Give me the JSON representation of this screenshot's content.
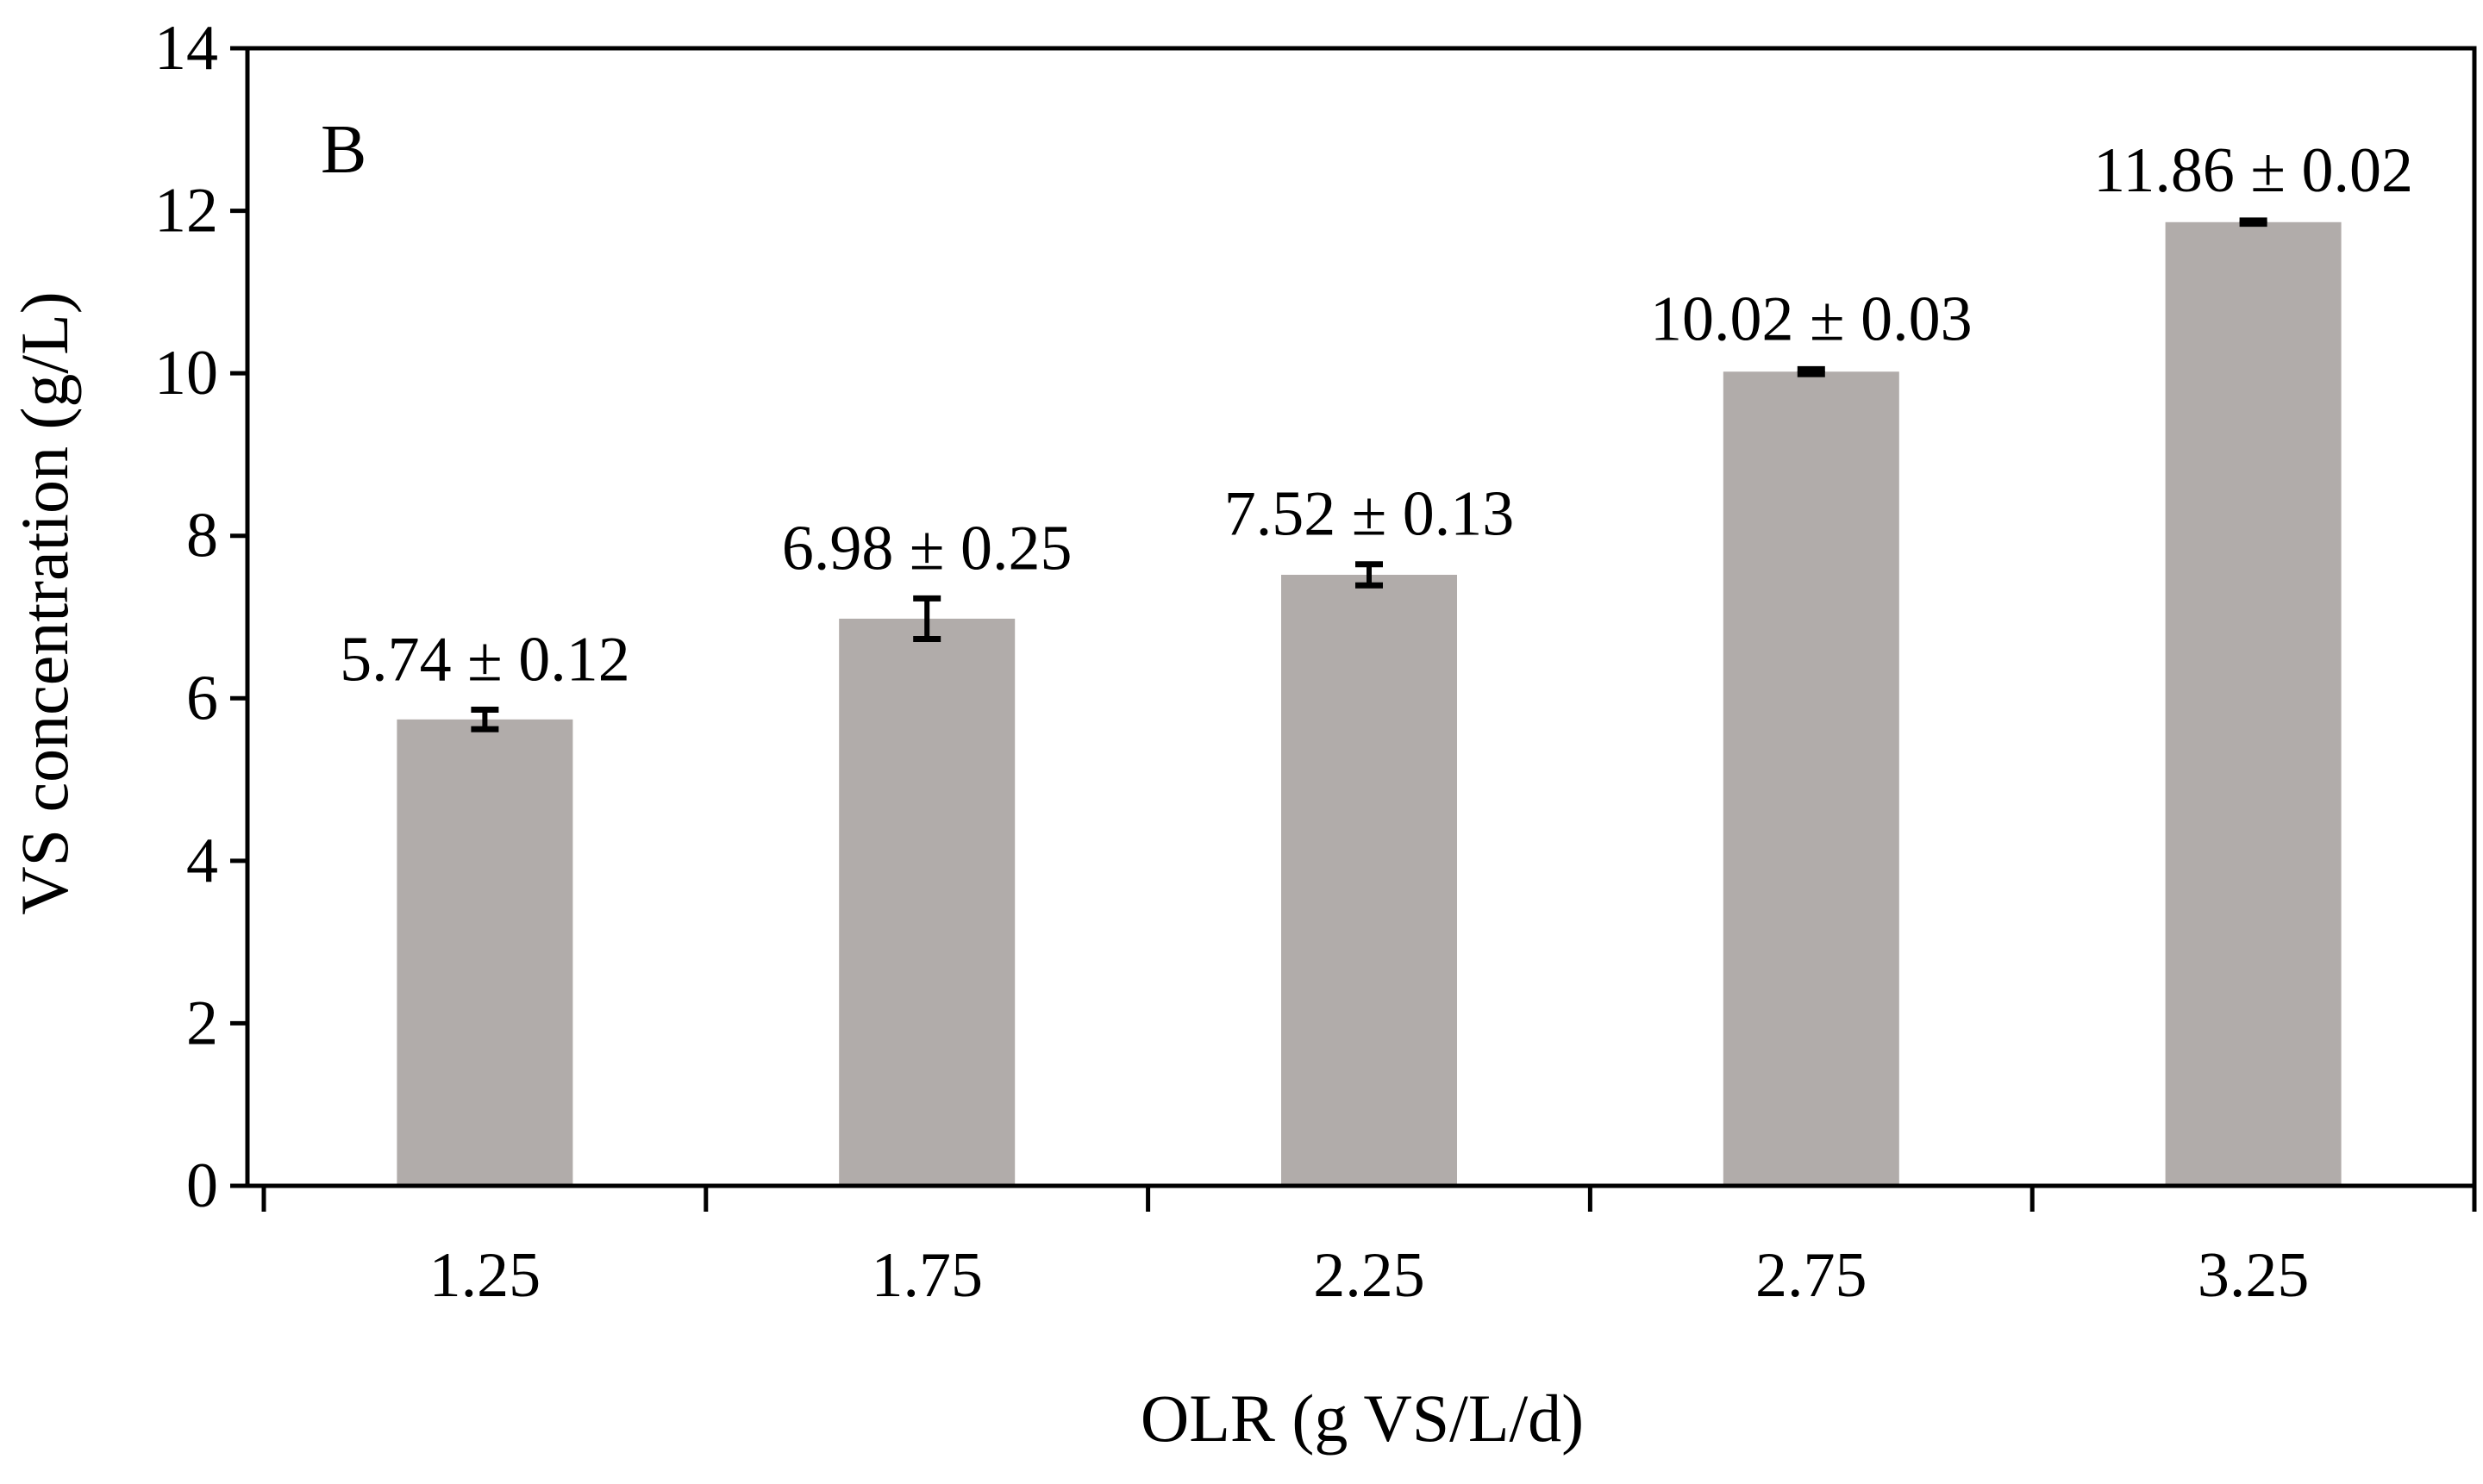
{
  "chart_data": {
    "type": "bar",
    "panel_label": "B",
    "title": "",
    "xlabel": "OLR (g VS/L/d)",
    "ylabel": "VS concentration (g/L)",
    "categories": [
      "1.25",
      "1.75",
      "2.25",
      "2.75",
      "3.25"
    ],
    "values": [
      5.74,
      6.98,
      7.52,
      10.02,
      11.86
    ],
    "errors": [
      0.12,
      0.25,
      0.13,
      0.03,
      0.02
    ],
    "data_labels": [
      "5.74 ± 0.12",
      "6.98 ± 0.25",
      "7.52 ± 0.13",
      "10.02 ± 0.03",
      "11.86 ± 0.02"
    ],
    "ylim": [
      0,
      14
    ],
    "yticks": [
      "0",
      "2",
      "4",
      "6",
      "8",
      "10",
      "12",
      "14"
    ],
    "grid": false,
    "legend": "none",
    "colors": {
      "bar": "#b1acaa",
      "axis": "#000000",
      "error_bar": "#000000"
    }
  }
}
